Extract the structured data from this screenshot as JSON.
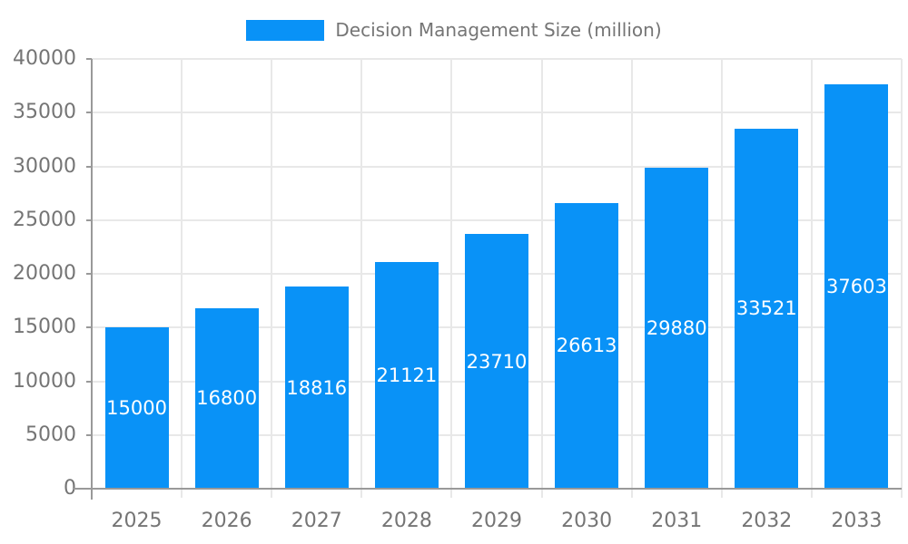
{
  "chart_data": {
    "type": "bar",
    "title": "",
    "legend": {
      "label": "Decision Management Size (million)",
      "position": "top-center"
    },
    "categories": [
      "2025",
      "2026",
      "2027",
      "2028",
      "2029",
      "2030",
      "2031",
      "2032",
      "2033"
    ],
    "series": [
      {
        "name": "Decision Management Size (million)",
        "values": [
          15000,
          16800,
          18816,
          21121,
          23710,
          26613,
          29880,
          33521,
          37603
        ]
      }
    ],
    "xlabel": "",
    "ylabel": "",
    "ylim": [
      0,
      40000
    ],
    "ytick_step": 5000,
    "yticks": [
      0,
      5000,
      10000,
      15000,
      20000,
      25000,
      30000,
      35000,
      40000
    ],
    "grid": true,
    "value_labels": {
      "show": true,
      "position": "center-inside-bar"
    },
    "colors": {
      "bar": "#0992f7",
      "value_label": "#ffffff",
      "axis_text": "#757575",
      "legend_text": "#757575",
      "grid_line": "#e8e8e8",
      "axis_line": "#999999",
      "background": "#ffffff"
    }
  }
}
